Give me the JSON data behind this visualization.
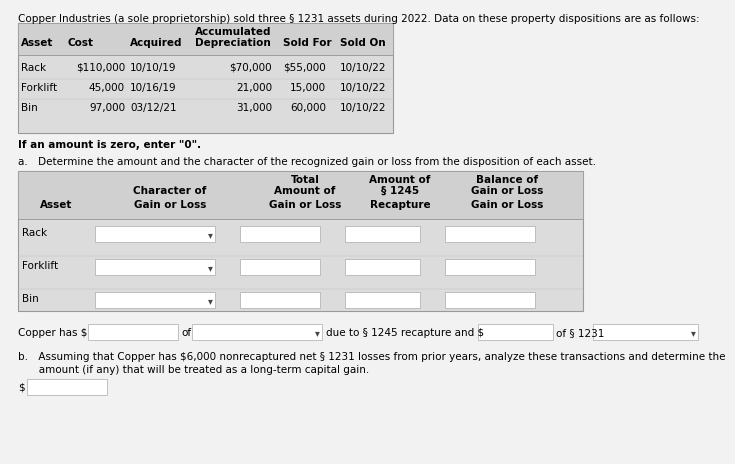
{
  "title_text": "Copper Industries (a sole proprietorship) sold three § 1231 assets during 2022. Data on these property dispositions are as follows:",
  "table1_rows": [
    [
      "Rack",
      "$110,000",
      "10/10/19",
      "$70,000",
      "$55,000",
      "10/10/22"
    ],
    [
      "Forklift",
      "45,000",
      "10/16/19",
      "21,000",
      "15,000",
      "10/10/22"
    ],
    [
      "Bin",
      "97,000",
      "03/12/21",
      "31,000",
      "60,000",
      "10/10/22"
    ]
  ],
  "zero_note": "If an amount is zero, enter \"0\".",
  "part_a_label": "a. Determine the amount and the character of the recognized gain or loss from the disposition of each asset.",
  "table2_assets": [
    "Rack",
    "Forklift",
    "Bin"
  ],
  "part_b_label": "b. Assuming that Copper has $6,000 nonrecaptured net § 1231 losses from prior years, analyze these transactions and determine the\n  amount (if any) that will be treated as a long-term capital gain.",
  "bg_color": "#f0f0f0",
  "table_bg": "#dcdcdc",
  "white": "#ffffff",
  "border_color": "#999999",
  "text_color": "#000000"
}
